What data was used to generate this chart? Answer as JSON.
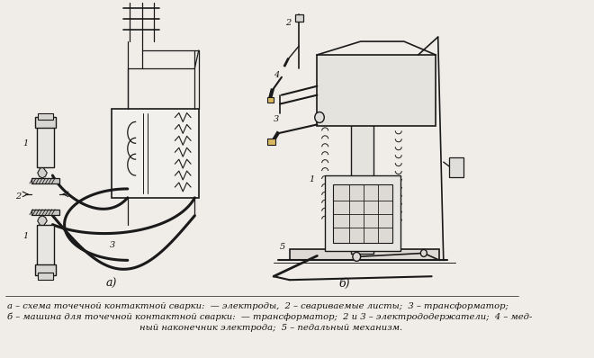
{
  "background_color": "#f0ede8",
  "fig_width": 6.6,
  "fig_height": 3.98,
  "dpi": 100,
  "caption_line1": "а – схема точечной контактной сварки:  — электроды,  2 – свариваемые листы;  3 – трансформатор;",
  "caption_line2": "б – машина для точечной контактной сварки:  — трансформатор;  2 и 3 – электрододержатели;  4 – мед-",
  "caption_line3": "ный наконечник электрода;  5 – педальный механизм.",
  "label_a": "а)",
  "label_b": "б)",
  "line_color": "#1a1a1a",
  "text_color": "#111111",
  "caption_fontsize": 7.2,
  "label_fontsize": 9
}
